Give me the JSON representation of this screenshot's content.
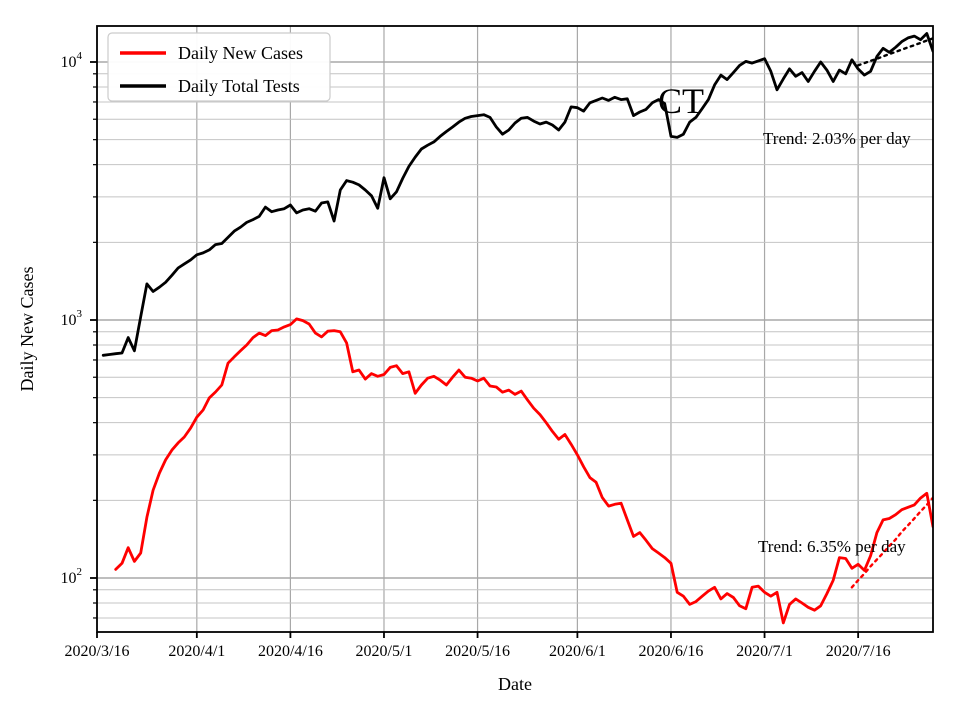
{
  "figure": {
    "annotation_state": "CT",
    "trend_label_top": "Trend: 2.03% per day",
    "trend_label_bottom": "Trend: 6.35% per day",
    "background_color": "#ffffff"
  },
  "axes": {
    "xlabel": "Date",
    "ylabel": "Daily New Cases",
    "yscale": "log",
    "x_base_date": "2020/3/16",
    "x_total_days": 134,
    "xticks": [
      "2020/3/16",
      "2020/4/1",
      "2020/4/16",
      "2020/5/1",
      "2020/5/16",
      "2020/6/1",
      "2020/6/16",
      "2020/7/1",
      "2020/7/16"
    ],
    "yticks": [
      {
        "mantissa": "10",
        "exponent": "2",
        "value": 100
      },
      {
        "mantissa": "10",
        "exponent": "3",
        "value": 1000
      },
      {
        "mantissa": "10",
        "exponent": "4",
        "value": 10000
      }
    ],
    "ylim": [
      61.8,
      13786
    ],
    "grid_major_color": "#a8a8a8",
    "grid_minor_color": "#c4c4c4"
  },
  "legend": {
    "entries": [
      {
        "label": "Daily New Cases",
        "color": "#ff0000"
      },
      {
        "label": "Daily Total Tests",
        "color": "#000000"
      }
    ]
  },
  "chart_data": {
    "type": "line",
    "x_unit": "day",
    "title": "",
    "xlabel": "Date",
    "ylabel": "Daily New Cases",
    "series": [
      {
        "name": "Daily New Cases",
        "color": "#ff0000",
        "style": "solid",
        "start_date": "2020/3/19",
        "values": [
          108,
          114,
          131,
          116,
          125,
          172,
          219,
          255,
          287,
          313,
          334,
          352,
          381,
          420,
          448,
          499,
          526,
          560,
          680,
          720,
          760,
          800,
          855,
          890,
          870,
          910,
          915,
          940,
          960,
          1010,
          995,
          965,
          890,
          860,
          905,
          910,
          900,
          815,
          630,
          640,
          590,
          620,
          605,
          615,
          655,
          665,
          620,
          630,
          520,
          560,
          595,
          605,
          585,
          560,
          600,
          640,
          600,
          595,
          580,
          595,
          555,
          550,
          525,
          535,
          515,
          530,
          490,
          455,
          430,
          400,
          370,
          345,
          360,
          330,
          300,
          270,
          245,
          235,
          205,
          190,
          193,
          195,
          168,
          145,
          150,
          140,
          130,
          125,
          120,
          114,
          88,
          85,
          79,
          81,
          85,
          89,
          92,
          83,
          87,
          84,
          78,
          76,
          92,
          93,
          88,
          85,
          88,
          67,
          79,
          83,
          80,
          77,
          75,
          78,
          87,
          98,
          120,
          119,
          109,
          113,
          107,
          122,
          150,
          168,
          170,
          176,
          184,
          188,
          192,
          204,
          213,
          158
        ]
      },
      {
        "name": "Daily Total Tests",
        "color": "#000000",
        "style": "solid",
        "start_date": "2020/3/17",
        "values": [
          730,
          735,
          740,
          745,
          855,
          760,
          1030,
          1380,
          1290,
          1340,
          1400,
          1490,
          1590,
          1650,
          1710,
          1790,
          1820,
          1870,
          1960,
          1980,
          2090,
          2210,
          2290,
          2390,
          2450,
          2520,
          2740,
          2630,
          2670,
          2700,
          2790,
          2600,
          2670,
          2700,
          2640,
          2840,
          2870,
          2420,
          3190,
          3470,
          3420,
          3340,
          3190,
          3030,
          2710,
          3560,
          2950,
          3140,
          3540,
          3940,
          4280,
          4600,
          4760,
          4900,
          5150,
          5380,
          5600,
          5850,
          6050,
          6150,
          6200,
          6250,
          6100,
          5600,
          5250,
          5450,
          5800,
          6050,
          6100,
          5900,
          5750,
          5850,
          5700,
          5450,
          5850,
          6700,
          6650,
          6450,
          6950,
          7100,
          7250,
          7100,
          7300,
          7150,
          7200,
          6200,
          6400,
          6550,
          6950,
          7150,
          6900,
          5150,
          5100,
          5250,
          5850,
          6100,
          6600,
          7150,
          8150,
          8900,
          8550,
          9100,
          9700,
          10050,
          9900,
          10100,
          10300,
          9200,
          7800,
          8600,
          9400,
          8800,
          9100,
          8400,
          9200,
          10000,
          9300,
          8400,
          9300,
          9000,
          10200,
          9400,
          8900,
          9200,
          10500,
          11300,
          10900,
          11400,
          12000,
          12400,
          12600,
          12200,
          12900,
          11000
        ]
      },
      {
        "name": "Daily New Cases trend (6.35% per day)",
        "color": "#ff0000",
        "style": "dotted",
        "start_date": "2020/7/15",
        "values": [
          92,
          98,
          104,
          111,
          118,
          125,
          133,
          141,
          151,
          160,
          170,
          181,
          192,
          205
        ]
      },
      {
        "name": "Daily Total Tests trend (2.03% per day)",
        "color": "#000000",
        "style": "dotted",
        "start_date": "2020/7/16",
        "values": [
          9700,
          9900,
          10100,
          10300,
          10510,
          10730,
          10940,
          11170,
          11390,
          11620,
          11860,
          12100,
          12350
        ]
      }
    ],
    "annotations": [
      {
        "text": "CT"
      },
      {
        "text": "Trend: 2.03% per day"
      },
      {
        "text": "Trend: 6.35% per day"
      }
    ],
    "legend_position": "upper left",
    "grid": true
  }
}
